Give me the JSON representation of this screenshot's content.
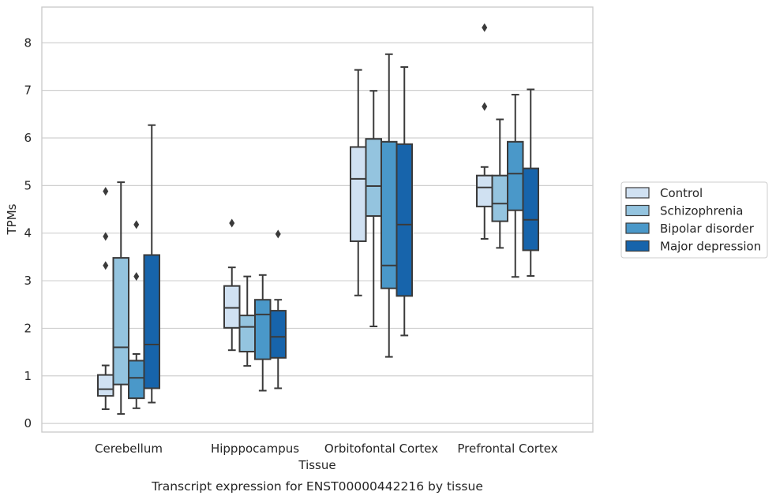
{
  "chart_data": {
    "type": "boxplot",
    "caption": "Transcript expression for ENST00000442216 by tissue",
    "xlabel": "Tissue",
    "ylabel": "TPMs",
    "ylim": [
      -0.18,
      8.75
    ],
    "yticks": [
      0,
      1,
      2,
      3,
      4,
      5,
      6,
      7,
      8
    ],
    "grid": "horizontal",
    "legend_position": "right",
    "categories": [
      "Cerebellum",
      "Hipppocampus",
      "Orbitofontal Cortex",
      "Prefrontal Cortex"
    ],
    "series": [
      {
        "name": "Control",
        "color": "#d0e1f2",
        "boxes": [
          {
            "whislo": 0.3,
            "q1": 0.58,
            "med": 0.72,
            "q3": 1.02,
            "whishi": 1.22,
            "fliers": [
              3.32,
              3.93,
              4.88
            ]
          },
          {
            "whislo": 1.54,
            "q1": 2.01,
            "med": 2.43,
            "q3": 2.89,
            "whishi": 3.28,
            "fliers": [
              4.21
            ]
          },
          {
            "whislo": 2.69,
            "q1": 3.83,
            "med": 5.14,
            "q3": 5.81,
            "whishi": 7.43,
            "fliers": []
          },
          {
            "whislo": 3.88,
            "q1": 4.56,
            "med": 4.96,
            "q3": 5.21,
            "whishi": 5.39,
            "fliers": [
              6.66,
              8.32
            ]
          }
        ]
      },
      {
        "name": "Schizophrenia",
        "color": "#94c4df",
        "boxes": [
          {
            "whislo": 0.2,
            "q1": 0.82,
            "med": 1.6,
            "q3": 3.48,
            "whishi": 5.07,
            "fliers": []
          },
          {
            "whislo": 1.21,
            "q1": 1.51,
            "med": 2.03,
            "q3": 2.27,
            "whishi": 3.09,
            "fliers": []
          },
          {
            "whislo": 2.04,
            "q1": 4.36,
            "med": 4.99,
            "q3": 5.98,
            "whishi": 6.99,
            "fliers": []
          },
          {
            "whislo": 3.69,
            "q1": 4.25,
            "med": 4.62,
            "q3": 5.21,
            "whishi": 6.39,
            "fliers": []
          }
        ]
      },
      {
        "name": "Bipolar disorder",
        "color": "#4a98c9",
        "boxes": [
          {
            "whislo": 0.32,
            "q1": 0.53,
            "med": 0.96,
            "q3": 1.32,
            "whishi": 1.46,
            "fliers": [
              3.09,
              4.18
            ]
          },
          {
            "whislo": 0.69,
            "q1": 1.35,
            "med": 2.29,
            "q3": 2.6,
            "whishi": 3.12,
            "fliers": []
          },
          {
            "whislo": 1.4,
            "q1": 2.84,
            "med": 3.32,
            "q3": 5.92,
            "whishi": 7.76,
            "fliers": []
          },
          {
            "whislo": 3.08,
            "q1": 4.48,
            "med": 5.25,
            "q3": 5.92,
            "whishi": 6.91,
            "fliers": []
          }
        ]
      },
      {
        "name": "Major depression",
        "color": "#1764ab",
        "boxes": [
          {
            "whislo": 0.44,
            "q1": 0.74,
            "med": 1.66,
            "q3": 3.54,
            "whishi": 6.27,
            "fliers": []
          },
          {
            "whislo": 0.74,
            "q1": 1.38,
            "med": 1.82,
            "q3": 2.37,
            "whishi": 2.6,
            "fliers": [
              3.98
            ]
          },
          {
            "whislo": 1.85,
            "q1": 2.68,
            "med": 4.18,
            "q3": 5.87,
            "whishi": 7.49,
            "fliers": []
          },
          {
            "whislo": 3.1,
            "q1": 3.64,
            "med": 4.28,
            "q3": 5.36,
            "whishi": 7.02,
            "fliers": []
          }
        ]
      }
    ]
  }
}
